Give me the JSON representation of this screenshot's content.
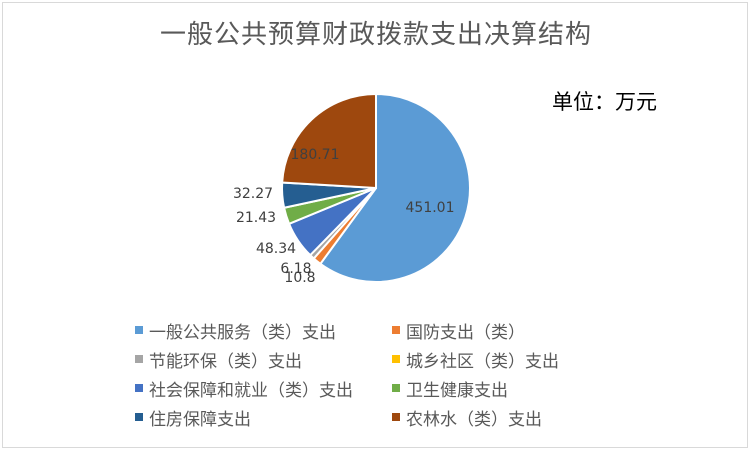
{
  "chart_data": {
    "type": "pie",
    "title": "一般公共预算财政拨款支出决算结构",
    "unit_label": "单位：万元",
    "start_angle_deg": 0,
    "slices": [
      {
        "name": "一般公共服务（类）支出",
        "value": 451.01,
        "label": "451.01",
        "color": "#5b9bd5"
      },
      {
        "name": "国防支出（类）",
        "value": 10.8,
        "label": "10.8",
        "color": "#ed7d31"
      },
      {
        "name": "节能环保（类）支出",
        "value": 6.18,
        "label": "6.18",
        "color": "#a5a5a5"
      },
      {
        "name": "城乡社区（类）支出",
        "value": 0,
        "label": "",
        "color": "#ffc000"
      },
      {
        "name": "社会保障和就业（类）支出",
        "value": 48.34,
        "label": "48.34",
        "color": "#4472c4"
      },
      {
        "name": "卫生健康支出",
        "value": 21.43,
        "label": "21.43",
        "color": "#70ad47"
      },
      {
        "name": "住房保障支出",
        "value": 32.27,
        "label": "32.27",
        "color": "#255e91"
      },
      {
        "name": "农林水（类）支出",
        "value": 180.71,
        "label": "180.71",
        "color": "#9e480e"
      }
    ]
  }
}
